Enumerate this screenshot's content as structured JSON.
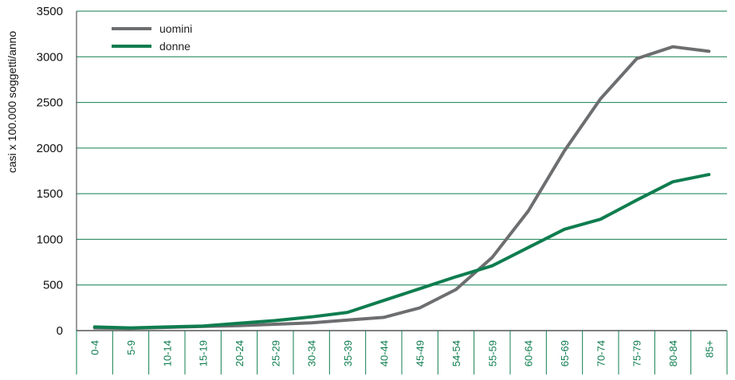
{
  "chart_data": {
    "type": "line",
    "ylabel": "casi x 100.000 soggetti/anno",
    "ylim": [
      0,
      3500
    ],
    "yticks": [
      0,
      500,
      1000,
      1500,
      2000,
      2500,
      3000,
      3500
    ],
    "grid": true,
    "legend_position": "top-left",
    "categories": [
      "0-4",
      "5-9",
      "10-14",
      "15-19",
      "20-24",
      "25-29",
      "30-34",
      "35-39",
      "40-44",
      "45-49",
      "54-54",
      "55-59",
      "60-64",
      "65-69",
      "70-74",
      "75-79",
      "80-84",
      "85+"
    ],
    "series": [
      {
        "name": "uomini",
        "color": "#6d6e70",
        "values": [
          30,
          25,
          35,
          45,
          55,
          70,
          85,
          115,
          145,
          250,
          450,
          800,
          1310,
          1970,
          2540,
          2980,
          3110,
          3060
        ]
      },
      {
        "name": "donne",
        "color": "#0f7d4f",
        "values": [
          40,
          30,
          40,
          50,
          80,
          110,
          150,
          200,
          330,
          460,
          590,
          710,
          910,
          1110,
          1220,
          1430,
          1630,
          1710
        ]
      }
    ],
    "colors": {
      "grid": "#0f7d4f",
      "axis": "#333333",
      "tick_label": "#0f7d4f"
    }
  }
}
